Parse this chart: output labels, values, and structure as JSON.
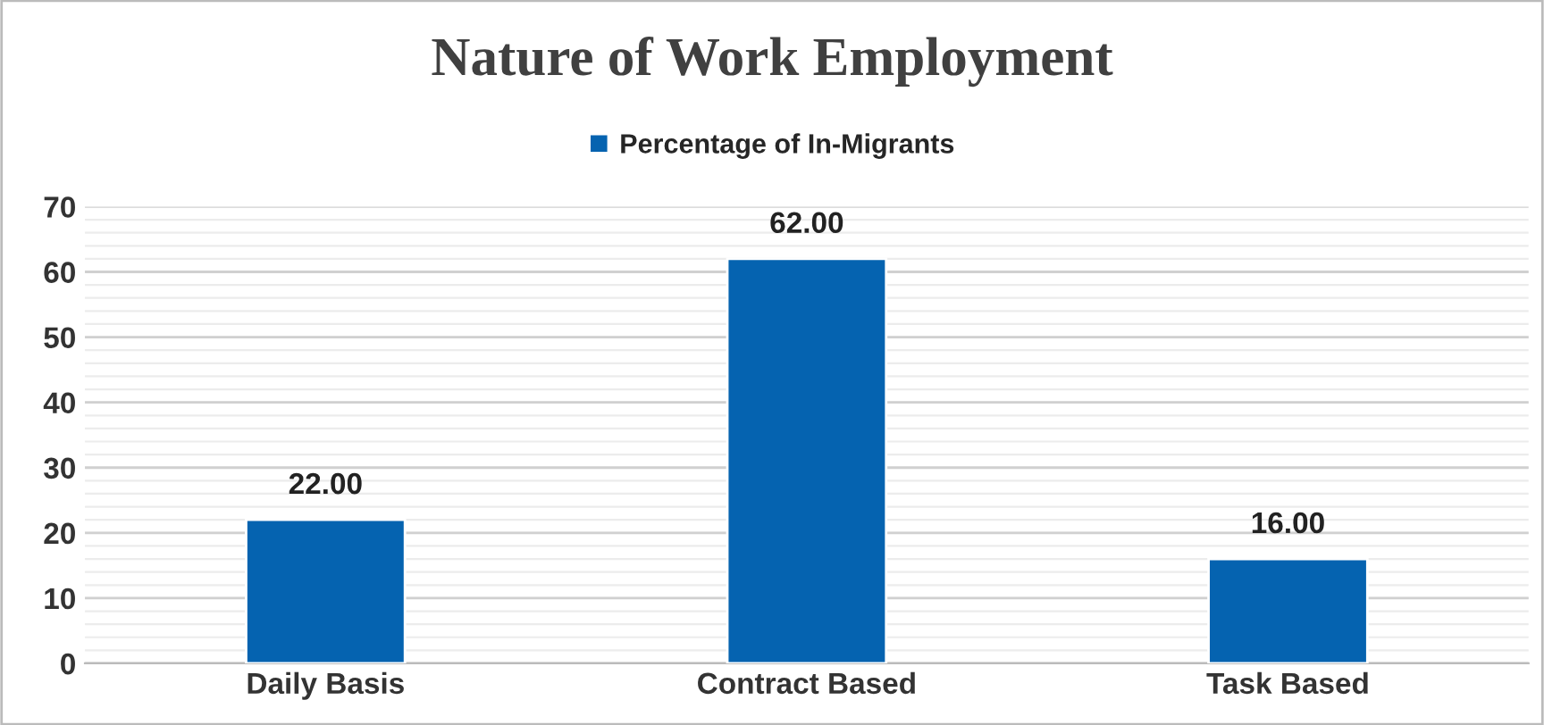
{
  "chart_data": {
    "type": "bar",
    "title": "Nature of Work Employment",
    "categories": [
      "Daily Basis",
      "Contract Based",
      "Task Based"
    ],
    "series": [
      {
        "name": "Percentage of In-Migrants",
        "color": "#0563b0",
        "values": [
          22,
          62,
          16
        ],
        "value_labels": [
          "22.00",
          "62.00",
          "16.00"
        ]
      }
    ],
    "ylim": [
      0,
      70
    ],
    "yticks": [
      0,
      10,
      20,
      30,
      40,
      50,
      60,
      70
    ],
    "grid": "y",
    "legend": "top"
  }
}
